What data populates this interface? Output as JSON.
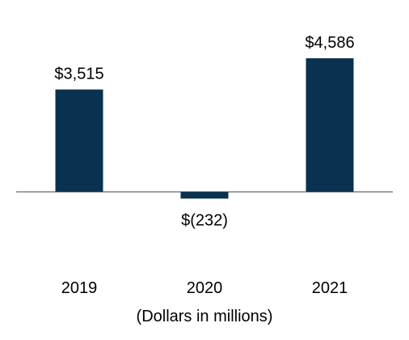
{
  "chart_data": {
    "type": "bar",
    "categories": [
      "2019",
      "2020",
      "2021"
    ],
    "values": [
      3515,
      -232,
      4586
    ],
    "data_labels": [
      "$3,515",
      "$(232)",
      "$4,586"
    ],
    "title": "",
    "xlabel": "(Dollars in millions)",
    "ylabel": "",
    "bar_color": "#0a3150",
    "axis_color": "#808080",
    "grid": false,
    "legend": "none"
  }
}
